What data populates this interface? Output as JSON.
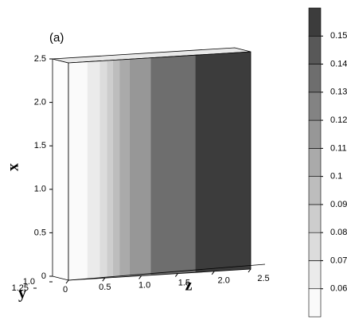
{
  "chart_data": {
    "type": "contour3d",
    "panel_label": "(a)",
    "xlabel": "x",
    "ylabel": "y",
    "zlabel": "z",
    "xlim": [
      0,
      2.5
    ],
    "xticks": [
      0,
      0.5,
      {
        "value": 1,
        "label": "1.0"
      },
      1.5,
      {
        "value": 2,
        "label": "2.0"
      },
      2.5
    ],
    "zlim": [
      0,
      2.5
    ],
    "zticks": [
      0,
      0.5,
      {
        "value": 1,
        "label": "1.0"
      },
      1.5,
      {
        "value": 2,
        "label": "2.0"
      },
      2.5
    ],
    "ylim": [
      1,
      1.25
    ],
    "yticks": [
      {
        "value": 1,
        "label": "1.0"
      },
      1.25
    ],
    "bands": {
      "z_edges": [
        0,
        0.26,
        0.43,
        0.53,
        0.61,
        0.7,
        0.84,
        1.13,
        1.74,
        2.5
      ],
      "values": [
        0.055,
        0.065,
        0.075,
        0.085,
        0.095,
        0.105,
        0.115,
        0.135,
        0.155
      ]
    },
    "colorbar": {
      "ticks": [
        0.06,
        0.07,
        0.08,
        0.09,
        0.1,
        0.11,
        0.12,
        0.13,
        0.14,
        0.15
      ],
      "colors": [
        "#fafafa",
        "#ebebeb",
        "#dcdcdc",
        "#cdcdcd",
        "#bdbdbd",
        "#aaaaaa",
        "#979797",
        "#838383",
        "#6e6e6e",
        "#585858",
        "#3c3c3c"
      ]
    }
  }
}
